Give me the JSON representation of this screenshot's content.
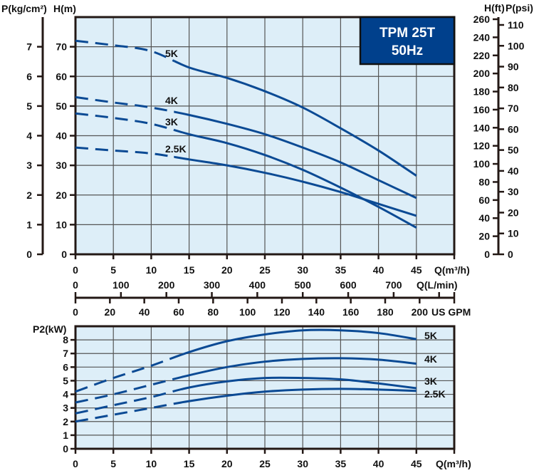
{
  "chart_data": [
    {
      "type": "line",
      "title": "TPM 25T",
      "subtitle": "50Hz",
      "xlabel": "Q(m³/h)",
      "ylabel": "H(m)",
      "secondary_axes": {
        "left_pressure": {
          "label": "P(kg/cm²)",
          "ticks": [
            0,
            1,
            2,
            3,
            4,
            5,
            6,
            7
          ]
        },
        "right_head_ft": {
          "label": "H(ft)",
          "ticks": [
            0,
            20,
            40,
            60,
            80,
            100,
            120,
            140,
            160,
            180,
            200,
            220,
            240,
            260
          ]
        },
        "right_pressure_psi": {
          "label": "P(psi)",
          "ticks": [
            0,
            10,
            20,
            30,
            40,
            50,
            60,
            70,
            80,
            90,
            100,
            110
          ]
        },
        "flow_lmin": {
          "label": "Q(L/min)",
          "ticks": [
            0,
            100,
            200,
            300,
            400,
            500,
            600,
            700
          ]
        },
        "flow_gpm": {
          "label": "US GPM",
          "ticks": [
            0,
            20,
            40,
            60,
            80,
            100,
            120,
            140,
            160,
            180,
            200
          ]
        }
      },
      "xlim": [
        0,
        50
      ],
      "ylim": [
        0,
        80
      ],
      "xticks": [
        0,
        5,
        10,
        15,
        20,
        25,
        30,
        35,
        40,
        45
      ],
      "yticks": [
        0,
        10,
        20,
        30,
        40,
        50,
        60,
        70
      ],
      "grid": true,
      "x": [
        0,
        5,
        10,
        15,
        20,
        25,
        30,
        35,
        40,
        45
      ],
      "dashed_until_x": 13,
      "series": [
        {
          "name": "5K",
          "values": [
            72,
            70.5,
            68.5,
            63,
            59.5,
            55,
            49.5,
            42.5,
            35,
            26.5
          ]
        },
        {
          "name": "4K",
          "values": [
            53,
            51.2,
            49.5,
            47,
            44,
            40.5,
            36,
            31,
            25,
            19
          ]
        },
        {
          "name": "3K",
          "values": [
            47.5,
            46,
            44,
            40.5,
            37.5,
            33.5,
            28.5,
            22.5,
            16,
            9
          ]
        },
        {
          "name": "2.5K",
          "values": [
            36,
            35,
            34,
            32,
            30,
            27.5,
            24.5,
            21,
            17,
            13
          ]
        }
      ]
    },
    {
      "type": "line",
      "xlabel": "Q(m³/h)",
      "ylabel": "P2(kW)",
      "xlim": [
        0,
        50
      ],
      "ylim": [
        0,
        9
      ],
      "xticks": [
        0,
        5,
        10,
        15,
        20,
        25,
        30,
        35,
        40,
        45
      ],
      "yticks": [
        0,
        1,
        2,
        3,
        4,
        5,
        6,
        7,
        8
      ],
      "grid": true,
      "x": [
        0,
        5,
        10,
        15,
        20,
        25,
        30,
        35,
        40,
        45
      ],
      "dashed_until_x": 14,
      "series": [
        {
          "name": "5K",
          "values": [
            4.2,
            5.2,
            6.1,
            7.1,
            7.9,
            8.4,
            8.7,
            8.7,
            8.5,
            8.05
          ]
        },
        {
          "name": "4K",
          "values": [
            3.4,
            4.0,
            4.7,
            5.4,
            6.0,
            6.4,
            6.6,
            6.65,
            6.55,
            6.25
          ]
        },
        {
          "name": "3K",
          "values": [
            2.6,
            3.2,
            3.8,
            4.5,
            4.95,
            5.2,
            5.2,
            5.1,
            4.8,
            4.45
          ]
        },
        {
          "name": "2.5K",
          "values": [
            2.0,
            2.5,
            3.0,
            3.5,
            3.9,
            4.2,
            4.35,
            4.4,
            4.35,
            4.25
          ]
        }
      ]
    }
  ],
  "colors": {
    "curve": "#0b4a94",
    "plot_bg": "#ddeef8",
    "badge": "#00408c",
    "axis": "#231815"
  }
}
